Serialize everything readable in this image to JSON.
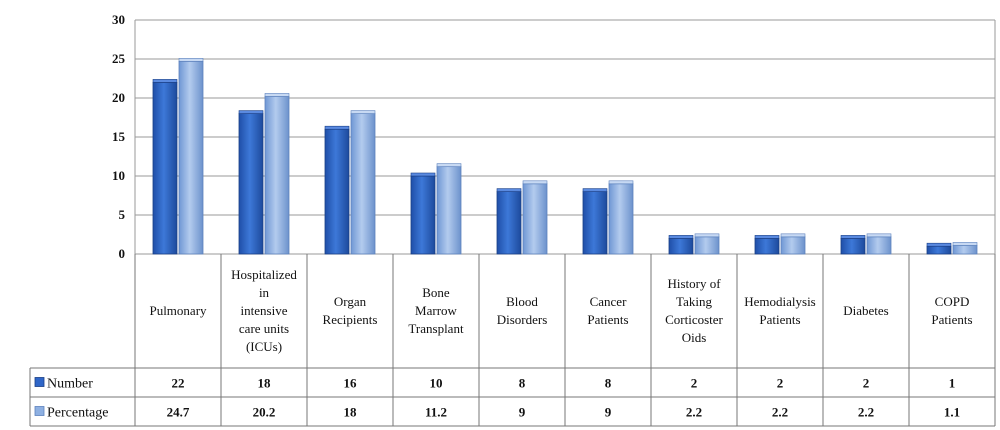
{
  "chart_data": {
    "type": "bar",
    "categories": [
      "Pulmonary",
      "Hospitalized in intensive care units (ICUs)",
      "Organ Recipients",
      "Bone Marrow Transplant",
      "Blood Disorders",
      "Cancer Patients",
      "History of Taking Corticoster Oids",
      "Hemodialysis Patients",
      "Diabetes",
      "COPD Patients"
    ],
    "category_lines": [
      [
        "Pulmonary"
      ],
      [
        "Hospitalized",
        "in",
        "intensive",
        "care units",
        "(ICUs)"
      ],
      [
        "Organ",
        "Recipients"
      ],
      [
        "Bone",
        "Marrow",
        "Transplant"
      ],
      [
        "Blood",
        "Disorders"
      ],
      [
        "Cancer",
        "Patients"
      ],
      [
        "History of",
        "Taking",
        "Corticoster",
        "Oids"
      ],
      [
        "Hemodialysis",
        "Patients"
      ],
      [
        "Diabetes"
      ],
      [
        "COPD",
        "Patients"
      ]
    ],
    "series": [
      {
        "name": "Number",
        "color": "#2f66c8",
        "values": [
          22,
          18,
          16,
          10,
          8,
          8,
          2,
          2,
          2,
          1
        ],
        "labels": [
          "22",
          "18",
          "16",
          "10",
          "8",
          "8",
          "2",
          "2",
          "2",
          "1"
        ]
      },
      {
        "name": "Percentage",
        "color": "#8eb0e2",
        "values": [
          24.7,
          20.2,
          18,
          11.2,
          9,
          9,
          2.2,
          2.2,
          2.2,
          1.1
        ],
        "labels": [
          "24.7",
          "20.2",
          "18",
          "11.2",
          "9",
          "9",
          "2.2",
          "2.2",
          "2.2",
          "1.1"
        ]
      }
    ],
    "ylim": [
      0,
      30
    ],
    "yticks": [
      "0",
      "5",
      "10",
      "15",
      "20",
      "25",
      "30"
    ],
    "grid": true,
    "data_table": true
  }
}
